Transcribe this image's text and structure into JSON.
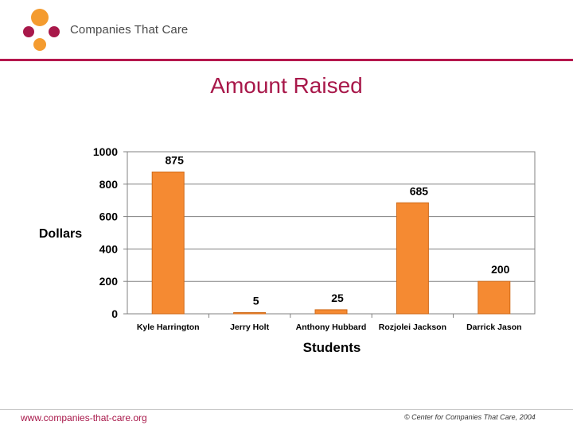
{
  "brand": {
    "name": "Companies That Care",
    "logo_icon": "companies-that-care-logo-icon"
  },
  "colors": {
    "accent": "#a8184a",
    "bar": "#f58a32",
    "bar_stroke": "#d06a18"
  },
  "slide": {
    "title": "Amount Raised"
  },
  "chart_data": {
    "type": "bar",
    "categories": [
      "Kyle Harrington",
      "Jerry Holt",
      "Anthony Hubbard",
      "Rozjolei Jackson",
      "Darrick Jason"
    ],
    "values": [
      875,
      5,
      25,
      685,
      200
    ],
    "data_labels": [
      "875",
      "5",
      "25",
      "685",
      "200"
    ],
    "title": "",
    "xlabel": "Students",
    "ylabel": "Dollars",
    "ylim": [
      0,
      1000
    ],
    "yticks": [
      0,
      200,
      400,
      600,
      800,
      1000
    ],
    "grid": true,
    "legend": "none"
  },
  "footer": {
    "url": "www.companies-that-care.org",
    "copyright": "© Center for Companies That Care, 2004"
  }
}
